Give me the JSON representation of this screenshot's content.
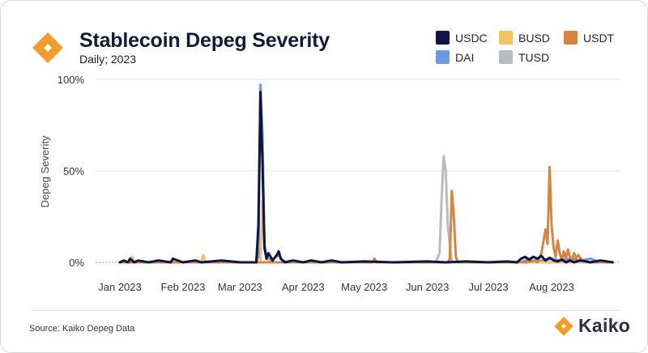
{
  "header": {
    "title": "Stablecoin Depeg Severity",
    "subtitle": "Daily; 2023"
  },
  "footer": {
    "source": "Source: Kaiko Depeg Data",
    "brand": "Kaiko"
  },
  "colors": {
    "USDC": "#0f1440",
    "BUSD": "#f2c265",
    "USDT": "#d6843f",
    "DAI": "#6d9ae0",
    "TUSD": "#b7bcc4",
    "logo": "#f39c2e",
    "grid": "#e6e6e6"
  },
  "chart_data": {
    "type": "line",
    "title": "Stablecoin Depeg Severity",
    "subtitle": "Daily; 2023",
    "xlabel": "",
    "ylabel": "Depeg Severity",
    "ylim": [
      0,
      100
    ],
    "yticks": [
      0,
      50,
      100
    ],
    "ytick_labels": [
      "0%",
      "50%",
      "100%"
    ],
    "xlim": [
      "2023-01-01",
      "2023-08-31"
    ],
    "xtick_labels": [
      "Jan 2023",
      "Feb 2023",
      "Mar 2023",
      "Apr 2023",
      "May 2023",
      "Jun 2023",
      "Jul 2023",
      "Aug 2023"
    ],
    "xtick_dates": [
      "2023-01-01",
      "2023-02-01",
      "2023-03-01",
      "2023-04-01",
      "2023-05-01",
      "2023-06-01",
      "2023-07-01",
      "2023-08-01"
    ],
    "grid": true,
    "legend": "top-right",
    "series": [
      {
        "name": "TUSD",
        "x": [
          "2023-01-01",
          "2023-06-05",
          "2023-06-07",
          "2023-06-08",
          "2023-06-09",
          "2023-06-10",
          "2023-06-11",
          "2023-06-13",
          "2023-08-31"
        ],
        "y": [
          0,
          0,
          5,
          35,
          58,
          50,
          20,
          0,
          0
        ]
      },
      {
        "name": "DAI",
        "x": [
          "2023-01-01",
          "2023-03-09",
          "2023-03-10",
          "2023-03-11",
          "2023-03-12",
          "2023-03-13",
          "2023-03-14",
          "2023-03-16",
          "2023-03-20",
          "2023-03-22",
          "2023-03-24",
          "2023-04-01",
          "2023-07-17",
          "2023-07-20",
          "2023-07-25",
          "2023-08-01",
          "2023-08-05",
          "2023-08-10",
          "2023-08-15",
          "2023-08-20",
          "2023-08-25",
          "2023-08-31"
        ],
        "y": [
          0,
          0,
          3,
          97,
          70,
          10,
          3,
          1,
          4,
          1,
          0,
          0,
          0,
          1.5,
          0.5,
          2,
          1,
          2,
          1,
          2,
          0,
          0
        ]
      },
      {
        "name": "BUSD",
        "x": [
          "2023-01-01",
          "2023-01-06",
          "2023-01-07",
          "2023-01-08",
          "2023-02-01",
          "2023-02-10",
          "2023-02-11",
          "2023-02-12",
          "2023-03-01",
          "2023-03-11",
          "2023-03-12",
          "2023-03-13",
          "2023-03-14",
          "2023-03-16",
          "2023-08-31"
        ],
        "y": [
          0,
          0,
          3,
          0,
          0,
          0,
          4,
          0,
          0,
          0,
          33,
          8,
          2,
          0,
          0
        ]
      },
      {
        "name": "USDT",
        "x": [
          "2023-01-01",
          "2023-05-05",
          "2023-05-06",
          "2023-05-07",
          "2023-06-01",
          "2023-06-11",
          "2023-06-12",
          "2023-06-13",
          "2023-06-14",
          "2023-06-15",
          "2023-06-16",
          "2023-07-20",
          "2023-07-24",
          "2023-07-25",
          "2023-07-27",
          "2023-07-29",
          "2023-07-30",
          "2023-07-31",
          "2023-08-01",
          "2023-08-02",
          "2023-08-03",
          "2023-08-04",
          "2023-08-05",
          "2023-08-06",
          "2023-08-07",
          "2023-08-08",
          "2023-08-09",
          "2023-08-10",
          "2023-08-11",
          "2023-08-12",
          "2023-08-13",
          "2023-08-14",
          "2023-08-16",
          "2023-08-20",
          "2023-08-31"
        ],
        "y": [
          0,
          0,
          2,
          0,
          0,
          0,
          2,
          39,
          25,
          3,
          0,
          0,
          1,
          0,
          5,
          18,
          10,
          52,
          20,
          8,
          3,
          12,
          5,
          1,
          6,
          2,
          7,
          3,
          1,
          5,
          2,
          4,
          1,
          0,
          0
        ]
      },
      {
        "name": "USDC",
        "x": [
          "2023-01-01",
          "2023-01-03",
          "2023-01-05",
          "2023-01-06",
          "2023-01-08",
          "2023-01-10",
          "2023-01-15",
          "2023-01-20",
          "2023-01-26",
          "2023-01-27",
          "2023-02-01",
          "2023-02-07",
          "2023-02-10",
          "2023-02-20",
          "2023-03-01",
          "2023-03-09",
          "2023-03-10",
          "2023-03-11",
          "2023-03-12",
          "2023-03-13",
          "2023-03-14",
          "2023-03-15",
          "2023-03-17",
          "2023-03-19",
          "2023-03-20",
          "2023-03-21",
          "2023-03-23",
          "2023-03-27",
          "2023-04-01",
          "2023-04-05",
          "2023-04-10",
          "2023-04-15",
          "2023-04-20",
          "2023-05-01",
          "2023-05-15",
          "2023-06-01",
          "2023-06-10",
          "2023-06-20",
          "2023-07-01",
          "2023-07-10",
          "2023-07-15",
          "2023-07-17",
          "2023-07-19",
          "2023-07-21",
          "2023-07-23",
          "2023-07-25",
          "2023-07-27",
          "2023-07-29",
          "2023-07-31",
          "2023-08-02",
          "2023-08-04",
          "2023-08-06",
          "2023-08-08",
          "2023-08-10",
          "2023-08-12",
          "2023-08-15",
          "2023-08-20",
          "2023-08-25",
          "2023-08-31"
        ],
        "y": [
          0,
          1,
          0,
          2,
          0,
          1,
          0,
          1,
          0,
          2,
          0,
          1,
          0,
          1,
          0,
          0,
          20,
          93,
          55,
          8,
          2,
          5,
          1,
          4,
          6,
          2,
          0,
          1,
          0,
          1,
          0,
          1,
          0,
          0.5,
          0,
          0.5,
          0,
          0.5,
          0,
          0.5,
          0,
          2,
          3,
          1.5,
          3,
          2,
          3.5,
          1,
          2.5,
          1,
          0.5,
          1.5,
          0,
          1,
          0,
          1,
          0,
          1,
          0
        ]
      }
    ]
  }
}
